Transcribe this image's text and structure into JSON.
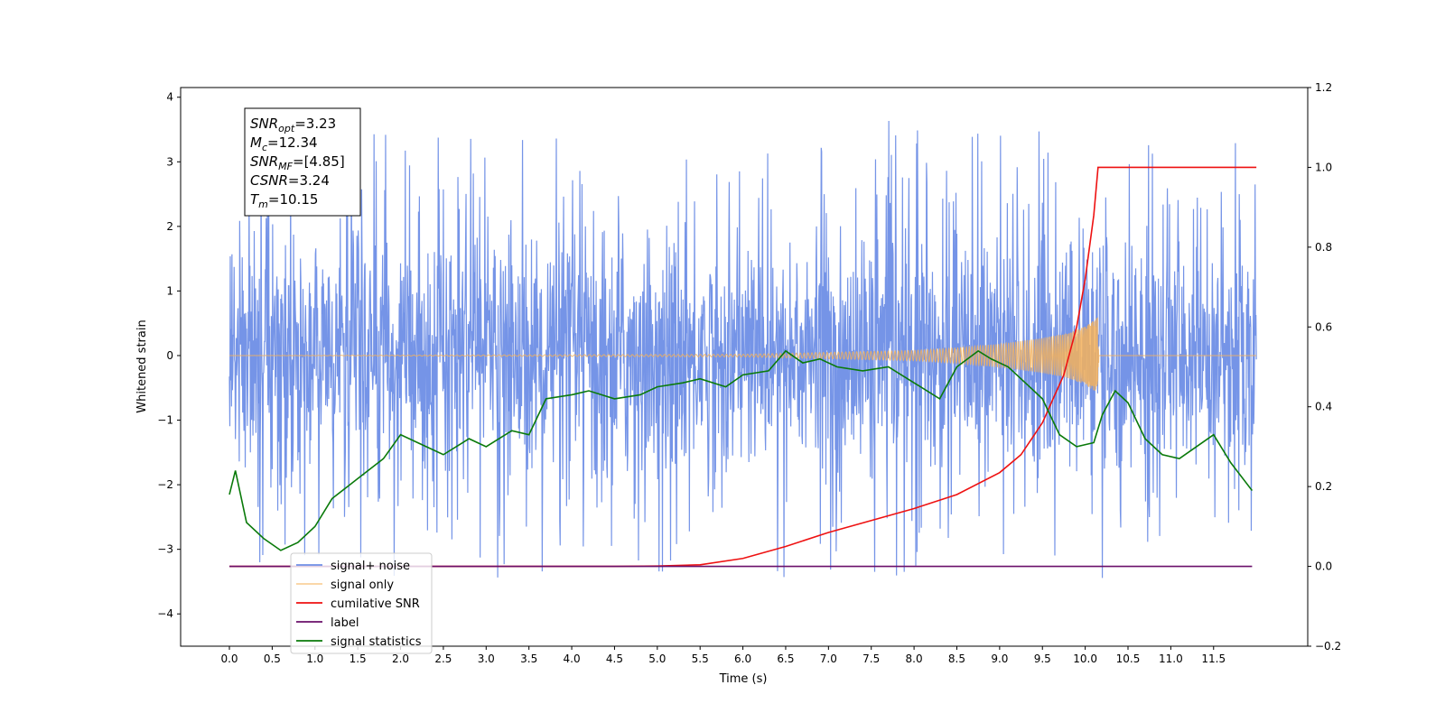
{
  "chart_data": {
    "type": "line",
    "xlabel": "Time (s)",
    "ylabel": "Whitened strain",
    "xlim": [
      -0.57,
      12.6
    ],
    "ylim": [
      -4.5,
      4.15
    ],
    "y2lim": [
      -0.2,
      1.2
    ],
    "x_ticks": [
      0.0,
      0.5,
      1.0,
      1.5,
      2.0,
      2.5,
      3.0,
      3.5,
      4.0,
      4.5,
      5.0,
      5.5,
      6.0,
      6.5,
      7.0,
      7.5,
      8.0,
      8.5,
      9.0,
      9.5,
      10.0,
      10.5,
      11.0,
      11.5
    ],
    "x_tick_labels": [
      "0.0",
      "0.5",
      "1.0",
      "1.5",
      "2.0",
      "2.5",
      "3.0",
      "3.5",
      "4.0",
      "4.5",
      "5.0",
      "5.5",
      "6.0",
      "6.5",
      "7.0",
      "7.5",
      "8.0",
      "8.5",
      "9.0",
      "9.5",
      "10.0",
      "10.5",
      "11.0",
      "11.5"
    ],
    "y_ticks": [
      -4,
      -3,
      -2,
      -1,
      0,
      1,
      2,
      3,
      4
    ],
    "y_tick_labels": [
      "−4",
      "−3",
      "−2",
      "−1",
      "0",
      "1",
      "2",
      "3",
      "4"
    ],
    "y2_ticks": [
      -0.2,
      0.0,
      0.2,
      0.4,
      0.6,
      0.8,
      1.0,
      1.2
    ],
    "y2_tick_labels": [
      "−0.2",
      "0.0",
      "0.2",
      "0.4",
      "0.6",
      "0.8",
      "1.0",
      "1.2"
    ],
    "legend_position": "lower-left",
    "colors": {
      "noise": "#6e8ee6",
      "signal": "#f5b25a",
      "cumulative": "#ee1111",
      "label": "#6a0f6a",
      "statistics": "#0a7a0a"
    },
    "series": [
      {
        "name": "signal+ noise",
        "axis": "left",
        "x_range": [
          0.0,
          12.0
        ],
        "envelope": {
          "typical_low": -1.6,
          "typical_high": 1.6,
          "spike_min": -4.1,
          "spike_max": 3.7
        }
      },
      {
        "name": "signal only",
        "axis": "left",
        "x_range": [
          0.0,
          12.0
        ],
        "chirp_amplitude": [
          [
            0.0,
            0.0
          ],
          [
            6.0,
            0.02
          ],
          [
            7.0,
            0.05
          ],
          [
            8.0,
            0.08
          ],
          [
            8.5,
            0.12
          ],
          [
            9.0,
            0.18
          ],
          [
            9.5,
            0.27
          ],
          [
            9.8,
            0.35
          ],
          [
            10.0,
            0.45
          ],
          [
            10.15,
            0.6
          ],
          [
            10.16,
            0.0
          ],
          [
            12.0,
            0.0
          ]
        ]
      },
      {
        "name": "cumilative SNR",
        "axis": "right",
        "x": [
          0.0,
          4.5,
          5.0,
          5.5,
          6.0,
          6.5,
          7.0,
          7.5,
          8.0,
          8.5,
          9.0,
          9.25,
          9.5,
          9.75,
          9.9,
          10.0,
          10.1,
          10.15,
          10.16,
          12.0
        ],
        "y": [
          0.0,
          0.0,
          0.001,
          0.004,
          0.02,
          0.05,
          0.085,
          0.115,
          0.145,
          0.18,
          0.235,
          0.28,
          0.36,
          0.48,
          0.6,
          0.72,
          0.88,
          1.0,
          1.0,
          1.0
        ]
      },
      {
        "name": "label",
        "axis": "right",
        "x": [
          0.0,
          11.95
        ],
        "y": [
          0.0,
          0.0
        ]
      },
      {
        "name": "signal statistics",
        "axis": "right",
        "x": [
          0.0,
          0.07,
          0.2,
          0.4,
          0.6,
          0.8,
          1.0,
          1.2,
          1.5,
          1.8,
          2.0,
          2.2,
          2.5,
          2.8,
          3.0,
          3.3,
          3.5,
          3.7,
          4.0,
          4.2,
          4.5,
          4.8,
          5.0,
          5.3,
          5.5,
          5.8,
          6.0,
          6.3,
          6.5,
          6.7,
          6.9,
          7.1,
          7.4,
          7.7,
          8.0,
          8.3,
          8.5,
          8.75,
          8.9,
          9.1,
          9.3,
          9.5,
          9.7,
          9.9,
          10.1,
          10.2,
          10.35,
          10.5,
          10.7,
          10.9,
          11.1,
          11.3,
          11.5,
          11.7,
          11.95
        ],
        "y": [
          0.18,
          0.24,
          0.11,
          0.07,
          0.04,
          0.06,
          0.1,
          0.17,
          0.22,
          0.27,
          0.33,
          0.31,
          0.28,
          0.32,
          0.3,
          0.34,
          0.33,
          0.42,
          0.43,
          0.44,
          0.42,
          0.43,
          0.45,
          0.46,
          0.47,
          0.45,
          0.48,
          0.49,
          0.54,
          0.51,
          0.52,
          0.5,
          0.49,
          0.5,
          0.46,
          0.42,
          0.5,
          0.54,
          0.52,
          0.5,
          0.46,
          0.42,
          0.33,
          0.3,
          0.31,
          0.38,
          0.44,
          0.41,
          0.32,
          0.28,
          0.27,
          0.3,
          0.33,
          0.26,
          0.19
        ]
      }
    ],
    "annotation": {
      "lines": [
        {
          "base": "SNR",
          "sub": "opt",
          "value": "=3.23"
        },
        {
          "base": "M",
          "sub": "c",
          "value": "=12.34"
        },
        {
          "base": "SNR",
          "sub": "MF",
          "value": "=[4.85]"
        },
        {
          "base": "CSNR",
          "sub": "",
          "value": "=3.24"
        },
        {
          "base": "T",
          "sub": "m",
          "value": "=10.15"
        }
      ]
    },
    "legend": {
      "entries": [
        "signal+ noise",
        "signal only",
        "cumilative SNR",
        "label",
        "signal statistics"
      ]
    }
  }
}
